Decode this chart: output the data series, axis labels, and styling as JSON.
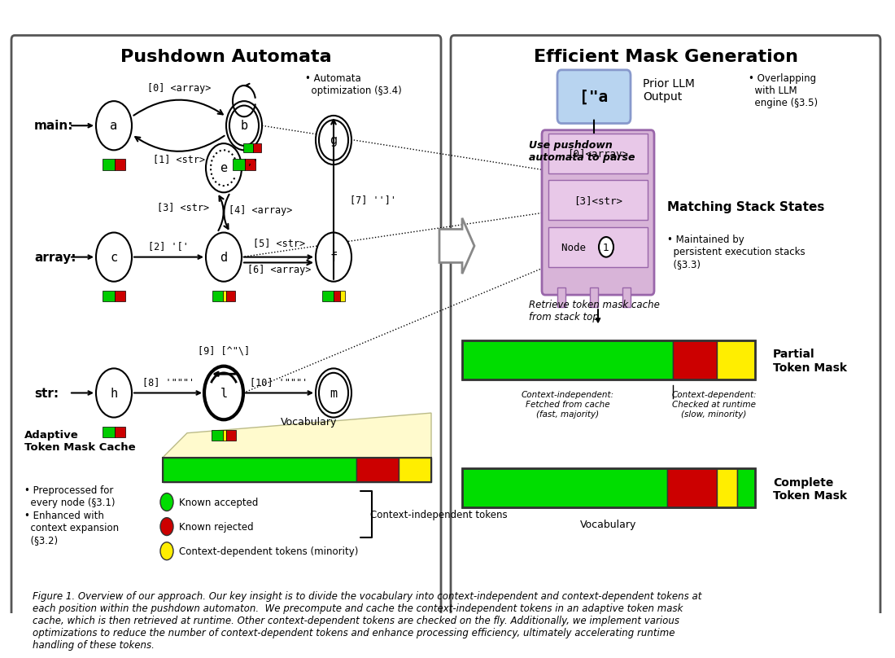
{
  "title_left": "Pushdown Automata",
  "title_right": "Efficient Mask Generation",
  "background": "#ffffff",
  "panel_bg": "#ffffff",
  "green_color": "#00cc00",
  "red_color": "#cc0000",
  "yellow_color": "#ffee00",
  "node_fill": "#ffffff",
  "node_edge": "#000000",
  "stack_fill": "#d8b4d8",
  "stack_border": "#9966aa",
  "llm_box_fill": "#b8d4f0",
  "llm_box_border": "#7799cc",
  "vocab_fill": "#fffacd",
  "caption": "Figure 1. Overview of our approach. Our key insight is to divide the vocabulary into context-independent and context-dependent tokens at\neach position within the pushdown automaton.  We precompute and cache the context-independent tokens in an adaptive token mask\ncache, which is then retrieved at runtime. Other context-dependent tokens are checked on the fly. Additionally, we implement various\noptimizations to reduce the number of context-dependent tokens and enhance processing efficiency, ultimately accelerating runtime\nhandling of these tokens."
}
